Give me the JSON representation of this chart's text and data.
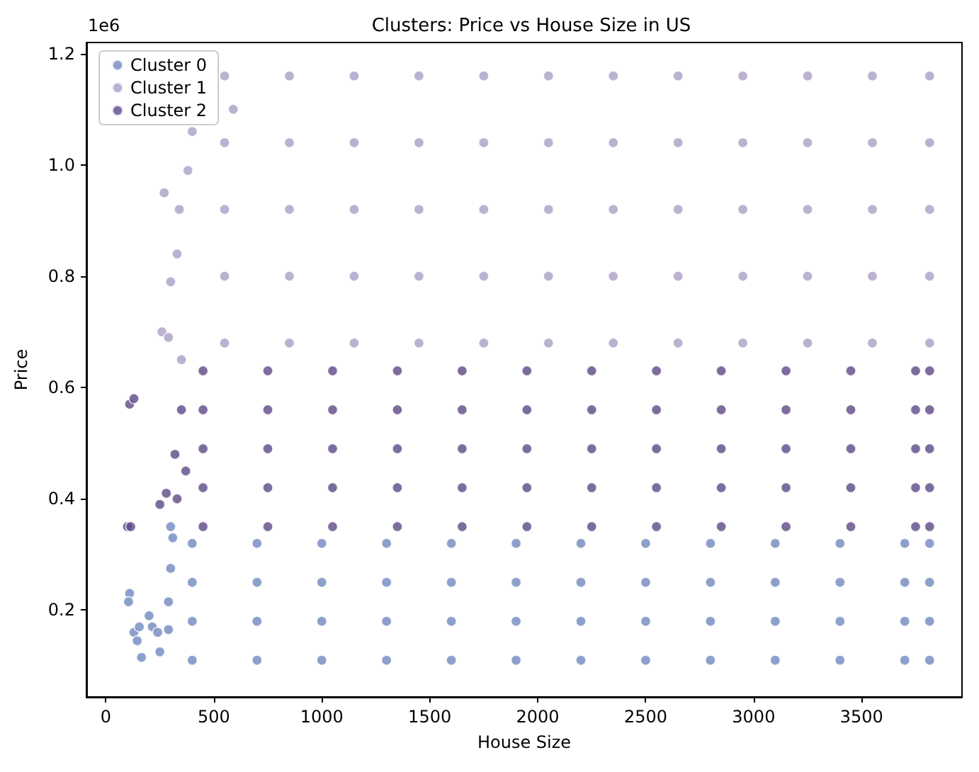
{
  "chart_data": {
    "type": "scatter",
    "title": "Clusters: Price vs House Size in US",
    "xlabel": "House Size",
    "ylabel": "Price",
    "annotations": [
      "1e6"
    ],
    "xlim": [
      -90,
      3965
    ],
    "ylim": [
      0.044,
      1.22
    ],
    "xticks": [
      0,
      500,
      1000,
      1500,
      2000,
      2500,
      3000,
      3500
    ],
    "yticks": [
      0.2,
      0.4,
      0.6,
      0.8,
      {
        "value": 1,
        "label": "1.0"
      },
      1.2
    ],
    "grid": false,
    "legend": "top left",
    "marker": "circle",
    "series": [
      {
        "name": "Cluster 0",
        "color": "#7088bf",
        "x": [
          110,
          105,
          130,
          145,
          155,
          165,
          200,
          215,
          240,
          250,
          290,
          290,
          300,
          310,
          300,
          400,
          700,
          1000,
          1300,
          1600,
          1900,
          2200,
          2500,
          2800,
          3100,
          3400,
          3700,
          3815,
          400,
          700,
          1000,
          1300,
          1600,
          1900,
          2200,
          2500,
          2800,
          3100,
          3400,
          3700,
          3815,
          400,
          700,
          1000,
          1300,
          1600,
          1900,
          2200,
          2500,
          2800,
          3100,
          3400,
          3700,
          3815,
          400,
          700,
          1000,
          1300,
          1600,
          1900,
          2200,
          2500,
          2800,
          3100,
          3400,
          3700,
          3815
        ],
        "values": [
          0.23,
          0.215,
          0.16,
          0.145,
          0.17,
          0.115,
          0.19,
          0.17,
          0.16,
          0.125,
          0.165,
          0.215,
          0.275,
          0.33,
          0.35,
          0.11,
          0.11,
          0.11,
          0.11,
          0.11,
          0.11,
          0.11,
          0.11,
          0.11,
          0.11,
          0.11,
          0.11,
          0.11,
          0.18,
          0.18,
          0.18,
          0.18,
          0.18,
          0.18,
          0.18,
          0.18,
          0.18,
          0.18,
          0.18,
          0.18,
          0.18,
          0.25,
          0.25,
          0.25,
          0.25,
          0.25,
          0.25,
          0.25,
          0.25,
          0.25,
          0.25,
          0.25,
          0.25,
          0.25,
          0.32,
          0.32,
          0.32,
          0.32,
          0.32,
          0.32,
          0.32,
          0.32,
          0.32,
          0.32,
          0.32,
          0.32,
          0.32
        ]
      },
      {
        "name": "Cluster 1",
        "color": "#aa9ec4",
        "x": [
          270,
          260,
          290,
          300,
          330,
          340,
          380,
          400,
          590,
          350,
          550,
          850,
          1150,
          1450,
          1750,
          2050,
          2350,
          2650,
          2950,
          3250,
          3550,
          3815,
          550,
          850,
          1150,
          1450,
          1750,
          2050,
          2350,
          2650,
          2950,
          3250,
          3550,
          3815,
          550,
          850,
          1150,
          1450,
          1750,
          2050,
          2350,
          2650,
          2950,
          3250,
          3550,
          3815,
          550,
          850,
          1150,
          1450,
          1750,
          2050,
          2350,
          2650,
          2950,
          3250,
          3550,
          3815,
          550,
          850,
          1150,
          1450,
          1750,
          2050,
          2350,
          2650,
          2950,
          3250,
          3550,
          3815
        ],
        "values": [
          0.95,
          0.7,
          0.69,
          0.79,
          0.84,
          0.92,
          0.99,
          1.06,
          1.1,
          0.65,
          0.68,
          0.68,
          0.68,
          0.68,
          0.68,
          0.68,
          0.68,
          0.68,
          0.68,
          0.68,
          0.68,
          0.68,
          0.8,
          0.8,
          0.8,
          0.8,
          0.8,
          0.8,
          0.8,
          0.8,
          0.8,
          0.8,
          0.8,
          0.8,
          0.92,
          0.92,
          0.92,
          0.92,
          0.92,
          0.92,
          0.92,
          0.92,
          0.92,
          0.92,
          0.92,
          0.92,
          1.04,
          1.04,
          1.04,
          1.04,
          1.04,
          1.04,
          1.04,
          1.04,
          1.04,
          1.04,
          1.04,
          1.04,
          1.16,
          1.16,
          1.16,
          1.16,
          1.16,
          1.16,
          1.16,
          1.16,
          1.16,
          1.16,
          1.16,
          1.16
        ]
      },
      {
        "name": "Cluster 2",
        "color": "#5c4886",
        "x": [
          100,
          115,
          110,
          130,
          250,
          280,
          320,
          330,
          350,
          370,
          450,
          750,
          1050,
          1350,
          1650,
          1950,
          2250,
          2550,
          2850,
          3150,
          3450,
          3750,
          3815,
          450,
          750,
          1050,
          1350,
          1650,
          1950,
          2250,
          2550,
          2850,
          3150,
          3450,
          3750,
          3815,
          450,
          750,
          1050,
          1350,
          1650,
          1950,
          2250,
          2550,
          2850,
          3150,
          3450,
          3750,
          3815,
          450,
          750,
          1050,
          1350,
          1650,
          1950,
          2250,
          2550,
          2850,
          3150,
          3450,
          3750,
          3815,
          450,
          750,
          1050,
          1350,
          1650,
          1950,
          2250,
          2550,
          2850,
          3150,
          3450,
          3750,
          3815
        ],
        "values": [
          0.35,
          0.35,
          0.57,
          0.58,
          0.39,
          0.41,
          0.48,
          0.4,
          0.56,
          0.45,
          0.35,
          0.35,
          0.35,
          0.35,
          0.35,
          0.35,
          0.35,
          0.35,
          0.35,
          0.35,
          0.35,
          0.35,
          0.35,
          0.42,
          0.42,
          0.42,
          0.42,
          0.42,
          0.42,
          0.42,
          0.42,
          0.42,
          0.42,
          0.42,
          0.42,
          0.42,
          0.49,
          0.49,
          0.49,
          0.49,
          0.49,
          0.49,
          0.49,
          0.49,
          0.49,
          0.49,
          0.49,
          0.49,
          0.49,
          0.56,
          0.56,
          0.56,
          0.56,
          0.56,
          0.56,
          0.56,
          0.56,
          0.56,
          0.56,
          0.56,
          0.56,
          0.56,
          0.63,
          0.63,
          0.63,
          0.63,
          0.63,
          0.63,
          0.63,
          0.63,
          0.63,
          0.63,
          0.63,
          0.63,
          0.63
        ]
      }
    ]
  }
}
